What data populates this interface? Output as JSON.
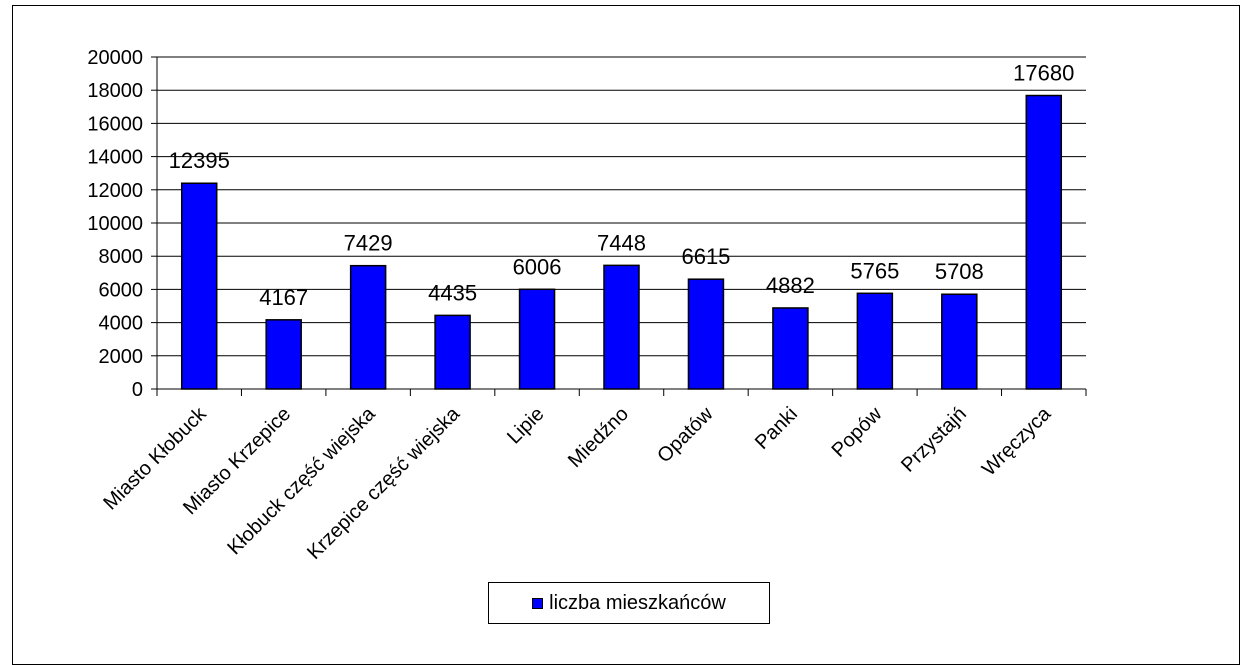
{
  "chart_data": {
    "type": "bar",
    "categories": [
      "Miasto Kłobuck",
      "Miasto Krzepice",
      "Kłobuck część wiejska",
      "Krzepice część wiejska",
      "Lipie",
      "Miedźno",
      "Opatów",
      "Panki",
      "Popów",
      "Przystajń",
      "Wręczyca"
    ],
    "series": [
      {
        "name": "liczba mieszkańców",
        "values": [
          12395,
          4167,
          7429,
          4435,
          6006,
          7448,
          6615,
          4882,
          5765,
          5708,
          17680
        ],
        "color": "#0000ff"
      }
    ],
    "data_labels": [
      "12395",
      "4167",
      "7429",
      "4435",
      "6006",
      "7448",
      "6615",
      "4882",
      "5765",
      "5708",
      "17680"
    ],
    "yticks": [
      "0",
      "2000",
      "4000",
      "6000",
      "8000",
      "10000",
      "12000",
      "14000",
      "16000",
      "18000",
      "20000"
    ],
    "ylim": [
      0,
      20000
    ],
    "grid": true,
    "legend_position": "bottom"
  }
}
